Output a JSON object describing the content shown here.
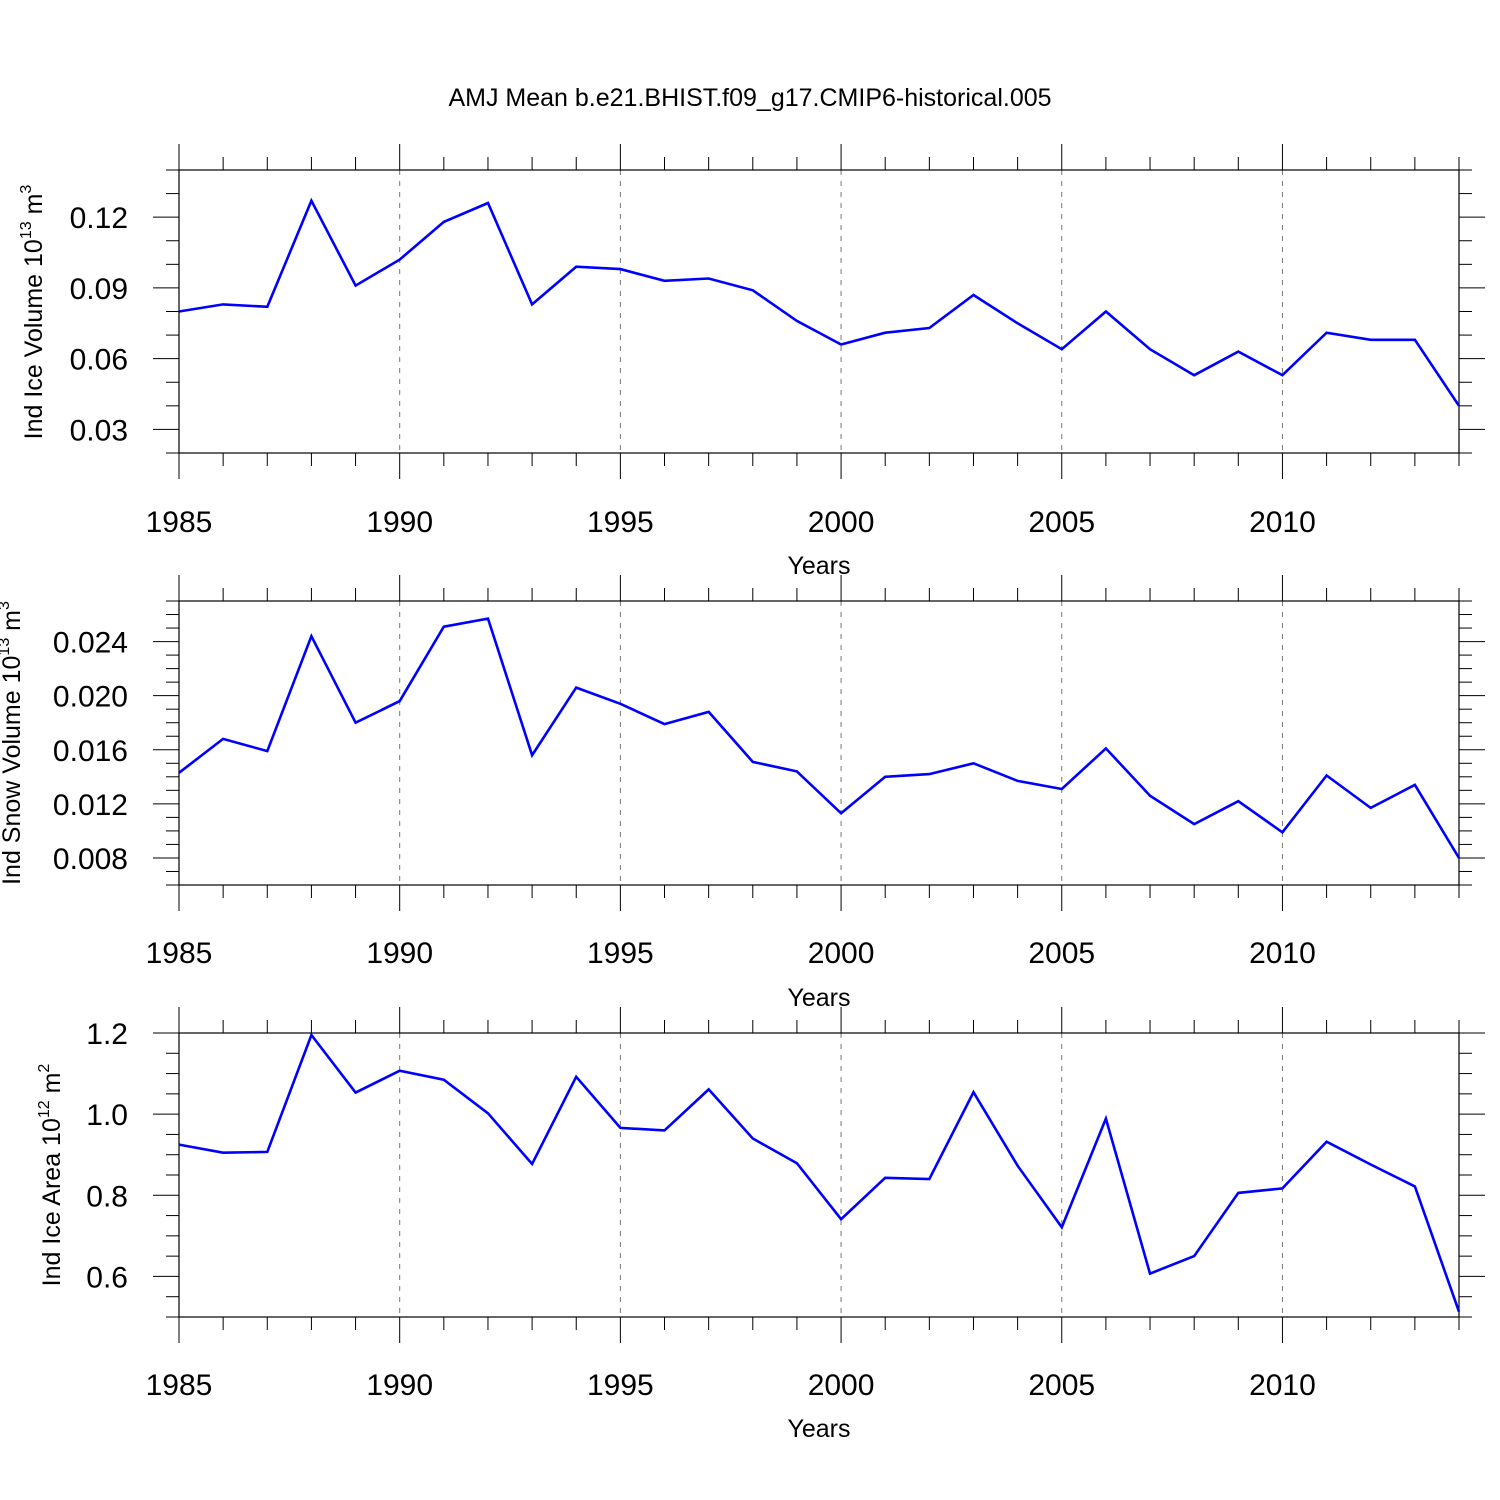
{
  "figure": {
    "title": "AMJ Mean b.e21.BHIST.f09_g17.CMIP6-historical.005"
  },
  "style": {
    "line_color": "#0000ff",
    "frame_color": "#000000",
    "grid_color": "#777777"
  },
  "chart_data": [
    {
      "type": "line",
      "name": "ice-volume",
      "ylabel": {
        "base": "Ind Ice Volume 10",
        "exp": "13",
        "unit": " m",
        "unit_exp": "3"
      },
      "xlabel": "Years",
      "xlim": [
        1985,
        2014
      ],
      "ylim": [
        0.02,
        0.14
      ],
      "xticks": [
        1985,
        1990,
        1995,
        2000,
        2005,
        2010
      ],
      "x_minor_step": 1,
      "yticks": [
        0.03,
        0.06,
        0.09,
        0.12
      ],
      "ytick_labels": [
        "0.03",
        "0.06",
        "0.09",
        "0.12"
      ],
      "y_minor_step": 0.01,
      "grid": "vertical dashed at major x ticks",
      "series": [
        {
          "x": [
            1985,
            1986,
            1987,
            1988,
            1989,
            1990,
            1991,
            1992,
            1993,
            1994,
            1995,
            1996,
            1997,
            1998,
            1999,
            2000,
            2001,
            2002,
            2003,
            2004,
            2005,
            2006,
            2007,
            2008,
            2009,
            2010,
            2011,
            2012,
            2013,
            2014
          ],
          "values": [
            0.08,
            0.083,
            0.082,
            0.127,
            0.091,
            0.102,
            0.118,
            0.126,
            0.083,
            0.099,
            0.098,
            0.093,
            0.094,
            0.089,
            0.076,
            0.066,
            0.071,
            0.073,
            0.087,
            0.075,
            0.064,
            0.08,
            0.064,
            0.053,
            0.063,
            0.053,
            0.071,
            0.068,
            0.068,
            0.04
          ]
        }
      ]
    },
    {
      "type": "line",
      "name": "snow-volume",
      "ylabel": {
        "base": "Ind Snow Volume 10",
        "exp": "13",
        "unit": " m",
        "unit_exp": "3"
      },
      "xlabel": "Years",
      "xlim": [
        1985,
        2014
      ],
      "ylim": [
        0.006,
        0.027
      ],
      "xticks": [
        1985,
        1990,
        1995,
        2000,
        2005,
        2010
      ],
      "x_minor_step": 1,
      "yticks": [
        0.008,
        0.012,
        0.016,
        0.02,
        0.024
      ],
      "ytick_labels": [
        "0.008",
        "0.012",
        "0.016",
        "0.020",
        "0.024"
      ],
      "y_minor_step": 0.001,
      "grid": "vertical dashed at major x ticks",
      "series": [
        {
          "x": [
            1985,
            1986,
            1987,
            1988,
            1989,
            1990,
            1991,
            1992,
            1993,
            1994,
            1995,
            1996,
            1997,
            1998,
            1999,
            2000,
            2001,
            2002,
            2003,
            2004,
            2005,
            2006,
            2007,
            2008,
            2009,
            2010,
            2011,
            2012,
            2013,
            2014
          ],
          "values": [
            0.0143,
            0.0168,
            0.0159,
            0.0244,
            0.018,
            0.0196,
            0.0251,
            0.0257,
            0.0156,
            0.0206,
            0.0194,
            0.0179,
            0.0188,
            0.0151,
            0.0144,
            0.0113,
            0.014,
            0.0142,
            0.015,
            0.0137,
            0.0131,
            0.0161,
            0.0126,
            0.0105,
            0.0122,
            0.0099,
            0.0141,
            0.0117,
            0.0134,
            0.008
          ]
        }
      ]
    },
    {
      "type": "line",
      "name": "ice-area",
      "ylabel": {
        "base": "Ind Ice Area 10",
        "exp": "12",
        "unit": " m",
        "unit_exp": "2"
      },
      "xlabel": "Years",
      "xlim": [
        1985,
        2014
      ],
      "ylim": [
        0.5,
        1.2
      ],
      "xticks": [
        1985,
        1990,
        1995,
        2000,
        2005,
        2010
      ],
      "x_minor_step": 1,
      "yticks": [
        0.6,
        0.8,
        1.0,
        1.2
      ],
      "ytick_labels": [
        "0.6",
        "0.8",
        "1.0",
        "1.2"
      ],
      "y_minor_step": 0.05,
      "grid": "vertical dashed at major x ticks",
      "series": [
        {
          "x": [
            1985,
            1986,
            1987,
            1988,
            1989,
            1990,
            1991,
            1992,
            1993,
            1994,
            1995,
            1996,
            1997,
            1998,
            1999,
            2000,
            2001,
            2002,
            2003,
            2004,
            2005,
            2006,
            2007,
            2008,
            2009,
            2010,
            2011,
            2012,
            2013,
            2014
          ],
          "values": [
            0.925,
            0.905,
            0.907,
            1.195,
            1.053,
            1.107,
            1.085,
            1.002,
            0.877,
            1.092,
            0.966,
            0.96,
            1.061,
            0.94,
            0.879,
            0.741,
            0.843,
            0.84,
            1.054,
            0.873,
            0.721,
            0.989,
            0.607,
            0.65,
            0.806,
            0.817,
            0.932,
            0.876,
            0.822,
            0.513
          ]
        }
      ]
    }
  ]
}
